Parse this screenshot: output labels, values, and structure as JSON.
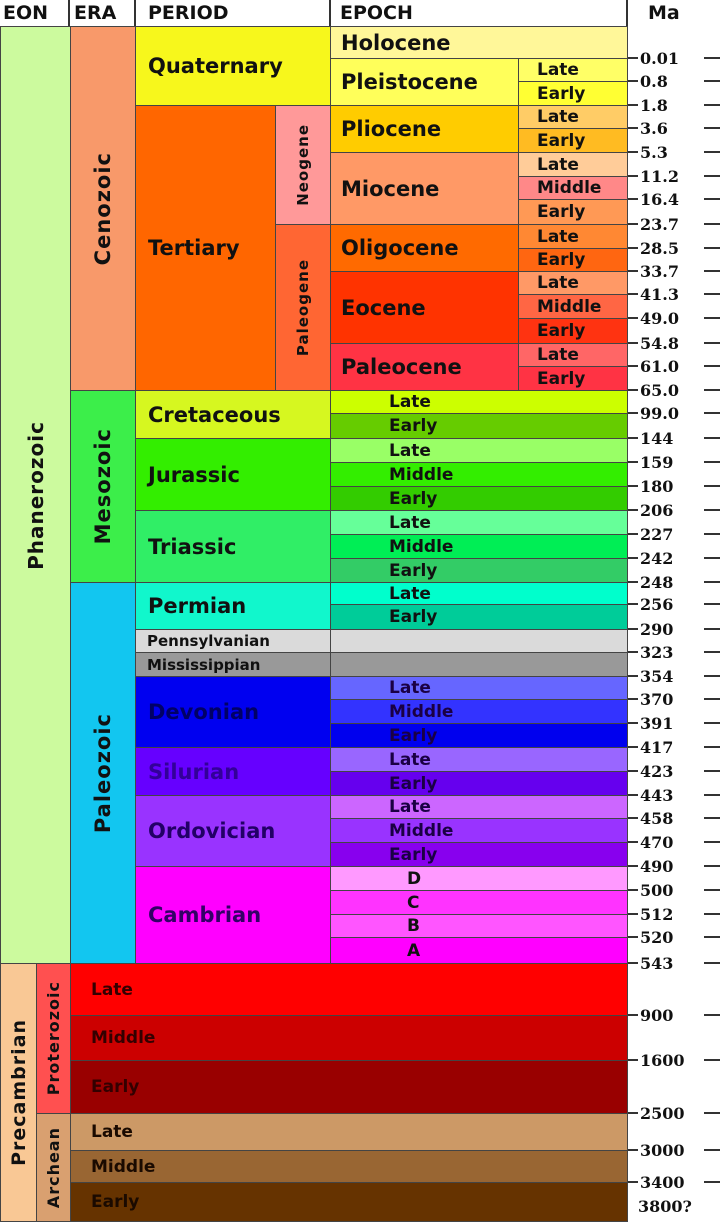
{
  "headers": {
    "eon": "EON",
    "era": "ERA",
    "period": "PERIOD",
    "epoch": "EPOCH",
    "ma": "Ma"
  },
  "eons": [
    {
      "label": "Phanerozoic",
      "color": "#ccfa9e"
    },
    {
      "label": "Precambrian",
      "color": "#f9c895"
    }
  ],
  "eras": [
    {
      "label": "Cenozoic",
      "color": "#f8996a"
    },
    {
      "label": "Mesozoic",
      "color": "#3cee4a"
    },
    {
      "label": "Paleozoic",
      "color": "#12c6f0"
    },
    {
      "label": "Proterozoic",
      "color": "#ff5050"
    },
    {
      "label": "Archean",
      "color": "#d9a070"
    }
  ],
  "periods": [
    {
      "label": "Quaternary",
      "color": "#f7f71c"
    },
    {
      "label": "Tertiary",
      "color": "#ff6600"
    },
    {
      "label": "Cretaceous",
      "color": "#d6f720"
    },
    {
      "label": "Jurassic",
      "color": "#33ee00"
    },
    {
      "label": "Triassic",
      "color": "#30ee66"
    },
    {
      "label": "Permian",
      "color": "#11f7cc"
    },
    {
      "label": "Pennsylvanian",
      "color": "#dadada"
    },
    {
      "label": "Mississippian",
      "color": "#999999"
    },
    {
      "label": "Devonian",
      "color": "#0000f0"
    },
    {
      "label": "Silurian",
      "color": "#6600ff"
    },
    {
      "label": "Ordovician",
      "color": "#9933ff"
    },
    {
      "label": "Cambrian",
      "color": "#ff00ff"
    }
  ],
  "subperiods": [
    {
      "label": "Neogene",
      "color": "#ff9999"
    },
    {
      "label": "Paleogene",
      "color": "#ff6633"
    }
  ],
  "epochs": [
    {
      "label": "Holocene",
      "color": "#fff799"
    },
    {
      "label": "Pleistocene",
      "color": "#ffff5a"
    },
    {
      "label": "Pliocene",
      "color": "#ffcc00"
    },
    {
      "label": "Miocene",
      "color": "#ff9966"
    },
    {
      "label": "Oligocene",
      "color": "#ff6a00"
    },
    {
      "label": "Eocene",
      "color": "#ff3300"
    },
    {
      "label": "Paleocene",
      "color": "#ff3344"
    },
    {
      "label": "",
      "color": "#dadada"
    },
    {
      "label": "",
      "color": "#999999"
    }
  ],
  "subdivisions": [
    {
      "label": "Late",
      "color": "#ffff66"
    },
    {
      "label": "Early",
      "color": "#ffff33"
    },
    {
      "label": "Late",
      "color": "#ffcc66"
    },
    {
      "label": "Early",
      "color": "#ffbb22"
    },
    {
      "label": "Late",
      "color": "#ffcc99"
    },
    {
      "label": "Middle",
      "color": "#ff8888"
    },
    {
      "label": "Early",
      "color": "#ff9955"
    },
    {
      "label": "Late",
      "color": "#ff8833"
    },
    {
      "label": "Early",
      "color": "#ff6611"
    },
    {
      "label": "Late",
      "color": "#ff9966"
    },
    {
      "label": "Middle",
      "color": "#ff6644"
    },
    {
      "label": "Early",
      "color": "#ff3311"
    },
    {
      "label": "Late",
      "color": "#ff6666"
    },
    {
      "label": "Early",
      "color": "#ff3344"
    },
    {
      "label": "Late",
      "color": "#ccff00"
    },
    {
      "label": "Early",
      "color": "#66cc00"
    },
    {
      "label": "Late",
      "color": "#99ff66"
    },
    {
      "label": "Middle",
      "color": "#33ee00"
    },
    {
      "label": "Early",
      "color": "#33cc00"
    },
    {
      "label": "Late",
      "color": "#66ff99"
    },
    {
      "label": "Middle",
      "color": "#00ee55"
    },
    {
      "label": "Early",
      "color": "#33cc66"
    },
    {
      "label": "Late",
      "color": "#00ffcc"
    },
    {
      "label": "Early",
      "color": "#00cc99"
    },
    {
      "label": "Late",
      "color": "#6666ff"
    },
    {
      "label": "Middle",
      "color": "#3333ff"
    },
    {
      "label": "Early",
      "color": "#0000ee"
    },
    {
      "label": "Late",
      "color": "#9966ff"
    },
    {
      "label": "Early",
      "color": "#6600ee"
    },
    {
      "label": "Late",
      "color": "#cc66ff"
    },
    {
      "label": "Middle",
      "color": "#9933ff"
    },
    {
      "label": "Early",
      "color": "#8800ee"
    },
    {
      "label": "D",
      "color": "#ff99ff"
    },
    {
      "label": "C",
      "color": "#ff33ff"
    },
    {
      "label": "B",
      "color": "#ff55ff"
    },
    {
      "label": "A",
      "color": "#ff00ff"
    },
    {
      "label": "Late",
      "color": "#ff0000"
    },
    {
      "label": "Middle",
      "color": "#cc0000"
    },
    {
      "label": "Early",
      "color": "#990000"
    },
    {
      "label": "Late",
      "color": "#cc9966"
    },
    {
      "label": "Middle",
      "color": "#996633"
    },
    {
      "label": "Early",
      "color": "#663300"
    }
  ],
  "ma_ticks": [
    "0.01",
    "0.8",
    "1.8",
    "3.6",
    "5.3",
    "11.2",
    "16.4",
    "23.7",
    "28.5",
    "33.7",
    "41.3",
    "49.0",
    "54.8",
    "61.0",
    "65.0",
    "99.0",
    "144",
    "159",
    "180",
    "206",
    "227",
    "242",
    "248",
    "256",
    "290",
    "323",
    "354",
    "370",
    "391",
    "417",
    "423",
    "443",
    "458",
    "470",
    "490",
    "500",
    "512",
    "520",
    "543",
    "900",
    "1600",
    "2500",
    "3000",
    "3400"
  ],
  "ma_oldest": "3800?"
}
